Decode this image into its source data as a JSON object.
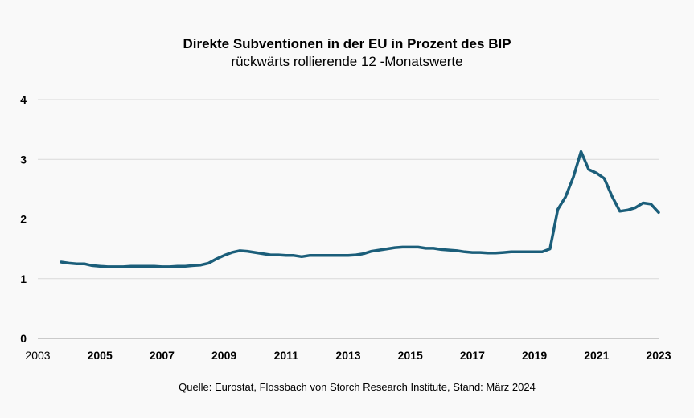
{
  "chart_data": {
    "type": "line",
    "title": "Direkte Subventionen in der EU in Prozent des BIP",
    "subtitle": "rückwärts rollierende 12 -Monatswerte",
    "xlabel": "",
    "ylabel": "",
    "xlim": [
      2003,
      2023
    ],
    "ylim": [
      0,
      4
    ],
    "x_ticks": [
      "2003",
      "2005",
      "2007",
      "2009",
      "2011",
      "2013",
      "2015",
      "2017",
      "2019",
      "2021",
      "2023"
    ],
    "y_ticks": [
      "0",
      "1",
      "2",
      "3",
      "4"
    ],
    "grid": true,
    "line_color": "#1b5e7a",
    "series": [
      {
        "name": "Direkte Subventionen in % des BIP",
        "x": [
          2003.75,
          2004.0,
          2004.25,
          2004.5,
          2004.75,
          2005.0,
          2005.25,
          2005.5,
          2005.75,
          2006.0,
          2006.25,
          2006.5,
          2006.75,
          2007.0,
          2007.25,
          2007.5,
          2007.75,
          2008.0,
          2008.25,
          2008.5,
          2008.75,
          2009.0,
          2009.25,
          2009.5,
          2009.75,
          2010.0,
          2010.25,
          2010.5,
          2010.75,
          2011.0,
          2011.25,
          2011.5,
          2011.75,
          2012.0,
          2012.25,
          2012.5,
          2012.75,
          2013.0,
          2013.25,
          2013.5,
          2013.75,
          2014.0,
          2014.25,
          2014.5,
          2014.75,
          2015.0,
          2015.25,
          2015.5,
          2015.75,
          2016.0,
          2016.25,
          2016.5,
          2016.75,
          2017.0,
          2017.25,
          2017.5,
          2017.75,
          2018.0,
          2018.25,
          2018.5,
          2018.75,
          2019.0,
          2019.25,
          2019.5,
          2019.75,
          2020.0,
          2020.25,
          2020.5,
          2020.75,
          2021.0,
          2021.25,
          2021.5,
          2021.75,
          2022.0,
          2022.25,
          2022.5,
          2022.75,
          2023.0
        ],
        "values": [
          1.28,
          1.26,
          1.25,
          1.25,
          1.22,
          1.21,
          1.2,
          1.2,
          1.2,
          1.21,
          1.21,
          1.21,
          1.21,
          1.2,
          1.2,
          1.21,
          1.21,
          1.22,
          1.23,
          1.26,
          1.33,
          1.39,
          1.44,
          1.47,
          1.46,
          1.44,
          1.42,
          1.4,
          1.4,
          1.39,
          1.39,
          1.37,
          1.39,
          1.39,
          1.39,
          1.39,
          1.39,
          1.39,
          1.4,
          1.42,
          1.46,
          1.48,
          1.5,
          1.52,
          1.53,
          1.53,
          1.53,
          1.51,
          1.51,
          1.49,
          1.48,
          1.47,
          1.45,
          1.44,
          1.44,
          1.43,
          1.43,
          1.44,
          1.45,
          1.45,
          1.45,
          1.45,
          1.45,
          1.5,
          2.16,
          2.37,
          2.7,
          3.13,
          2.83,
          2.77,
          2.68,
          2.38,
          2.13,
          2.15,
          2.19,
          2.27,
          2.25,
          2.11
        ]
      }
    ]
  },
  "source": "Quelle: Eurostat, Flossbach von Storch Research Institute, Stand: März 2024"
}
